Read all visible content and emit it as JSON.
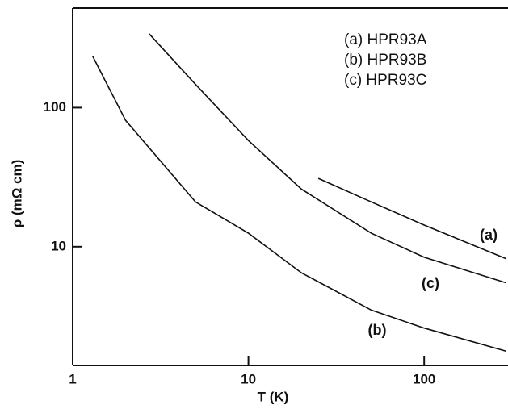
{
  "chart_data": {
    "type": "line",
    "x_label": "T (K)",
    "y_label": "ρ (mΩ cm)",
    "log_x": true,
    "log_y": true,
    "xlim": [
      1,
      300
    ],
    "ylim": [
      1.4,
      520
    ],
    "xticks": [
      1,
      10,
      100
    ],
    "yticks": [
      10,
      100
    ],
    "legend": "upper right",
    "series": [
      {
        "name": "(a) HPR93A",
        "curve_label": "(a)",
        "color": "#111111",
        "x": [
          25,
          50,
          100,
          293
        ],
        "values": [
          31,
          21,
          14.3,
          8.2
        ]
      },
      {
        "name": "(b) HPR93B",
        "curve_label": "(b)",
        "color": "#111111",
        "x": [
          1.3,
          2,
          5,
          10,
          20,
          50,
          100,
          293
        ],
        "values": [
          234,
          81,
          21,
          12.5,
          6.5,
          3.5,
          2.6,
          1.77
        ]
      },
      {
        "name": "(c) HPR93C",
        "curve_label": "(c)",
        "color": "#111111",
        "x": [
          2.72,
          5,
          10,
          20,
          50,
          100,
          293
        ],
        "values": [
          340,
          147,
          58,
          26,
          12.5,
          8.4,
          5.5
        ]
      }
    ]
  }
}
